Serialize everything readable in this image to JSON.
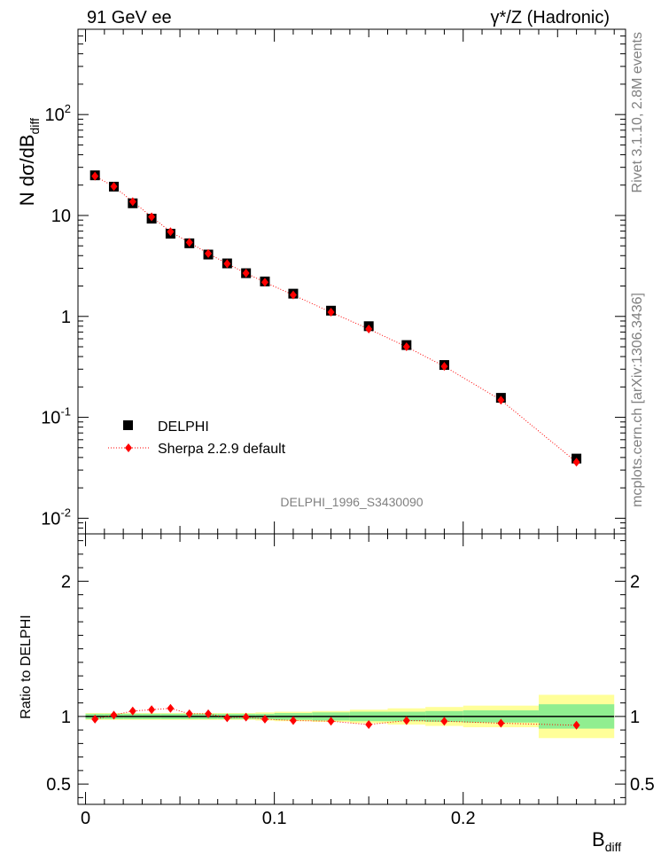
{
  "header": {
    "left": "91 GeV ee",
    "right_gamma": "γ*/Z (Hadronic)"
  },
  "side": {
    "rivet": "Rivet 3.1.10,  2.8M events",
    "mcplots": "mcplots.cern.ch [arXiv:1306.3436]"
  },
  "analysis_label": "DELPHI_1996_S3430090",
  "axes": {
    "ylabel_main_prefix": "N dσ/dB",
    "ylabel_main_sub": "diff",
    "ylabel_ratio": "Ratio to DELPHI",
    "xlabel_main": "B",
    "xlabel_sub": "diff",
    "main_ylim": [
      0.007,
      700
    ],
    "ratio_ylim": [
      0.35,
      2.35
    ],
    "xlim": [
      -0.004,
      0.286
    ],
    "main_yticks": [
      {
        "label": "10",
        "exp": "-2",
        "value": 0.01
      },
      {
        "label": "10",
        "exp": "-1",
        "value": 0.1
      },
      {
        "label": "1",
        "exp": "",
        "value": 1
      },
      {
        "label": "10",
        "exp": "",
        "value": 10
      },
      {
        "label": "10",
        "exp": "2",
        "value": 100
      }
    ],
    "ratio_yticks": [
      {
        "label": "0.5",
        "value": 0.5
      },
      {
        "label": "1",
        "value": 1
      },
      {
        "label": "2",
        "value": 2
      }
    ],
    "xticks": [
      {
        "label": "0",
        "value": 0
      },
      {
        "label": "0.1",
        "value": 0.1
      },
      {
        "label": "0.2",
        "value": 0.2
      }
    ]
  },
  "legend": {
    "data_label": "DELPHI",
    "mc_label": "Sherpa 2.2.9 default"
  },
  "colors": {
    "data": "#000000",
    "mc": "#ff0000",
    "band_inner": "#90ee90",
    "band_outer": "#ffff99"
  },
  "chart_data": {
    "type": "scatter",
    "x_edges": [
      0,
      0.01,
      0.02,
      0.03,
      0.04,
      0.05,
      0.06,
      0.07,
      0.08,
      0.09,
      0.1,
      0.12,
      0.14,
      0.16,
      0.18,
      0.2,
      0.24,
      0.28
    ],
    "x": [
      0.005,
      0.015,
      0.025,
      0.035,
      0.045,
      0.055,
      0.065,
      0.075,
      0.085,
      0.095,
      0.11,
      0.13,
      0.15,
      0.17,
      0.19,
      0.22,
      0.26
    ],
    "series": [
      {
        "name": "DELPHI",
        "values": [
          25,
          19.3,
          13.2,
          9.3,
          6.6,
          5.3,
          4.1,
          3.35,
          2.68,
          2.22,
          1.68,
          1.14,
          0.8,
          0.52,
          0.33,
          0.156,
          0.039
        ]
      },
      {
        "name": "Sherpa 2.2.9 default",
        "values": [
          24.5,
          19.4,
          13.7,
          9.7,
          6.9,
          5.4,
          4.2,
          3.33,
          2.68,
          2.18,
          1.63,
          1.1,
          0.75,
          0.5,
          0.32,
          0.148,
          0.036
        ]
      }
    ],
    "ratio": {
      "name": "Sherpa 2.2.9 default / DELPHI",
      "values": [
        0.98,
        1.01,
        1.04,
        1.05,
        1.06,
        1.02,
        1.02,
        0.99,
        0.995,
        0.98,
        0.97,
        0.965,
        0.94,
        0.97,
        0.965,
        0.95,
        0.935
      ],
      "band_inner": [
        0.02,
        0.02,
        0.02,
        0.02,
        0.02,
        0.02,
        0.02,
        0.02,
        0.02,
        0.02,
        0.025,
        0.03,
        0.035,
        0.035,
        0.04,
        0.045,
        0.09
      ],
      "band_outer": [
        0.025,
        0.025,
        0.025,
        0.025,
        0.025,
        0.025,
        0.025,
        0.025,
        0.025,
        0.03,
        0.035,
        0.04,
        0.05,
        0.06,
        0.07,
        0.08,
        0.16
      ]
    },
    "title": "γ*/Z (Hadronic)",
    "xlabel": "B_diff",
    "ylabel": "N dσ/dB_diff",
    "yscale": "log"
  }
}
